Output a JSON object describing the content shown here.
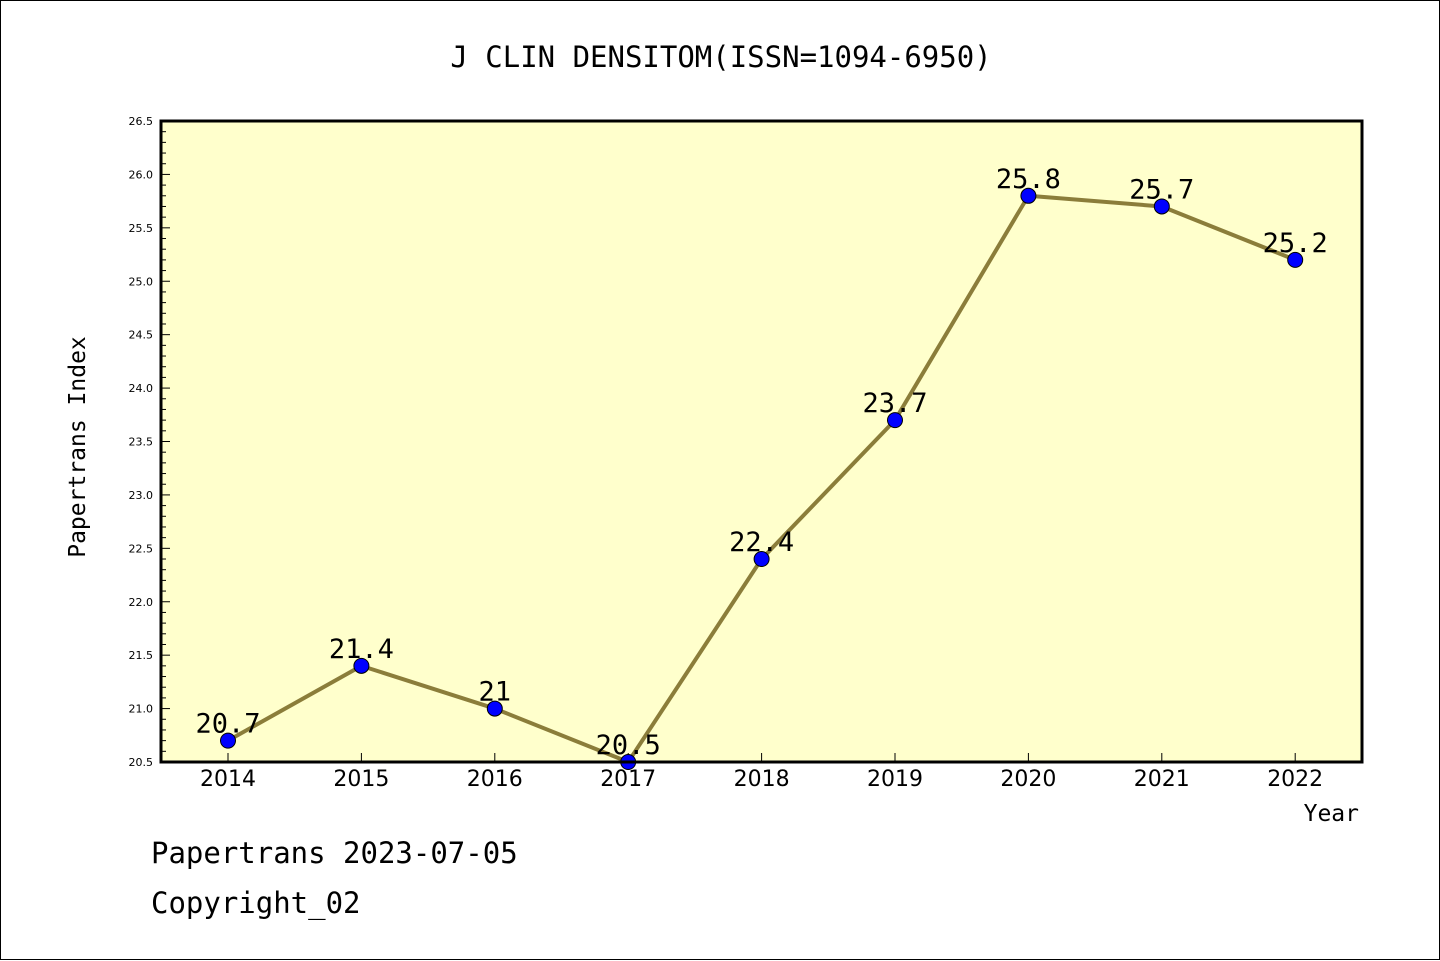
{
  "footer": {
    "line1": "Papertrans 2023-07-05",
    "line2": "Copyright_02"
  },
  "colors": {
    "plot_background": "#ffffcc",
    "line": "#8b7d3a",
    "marker": "#0000ff",
    "axis": "#000000"
  },
  "chart_data": {
    "type": "line",
    "title": "J CLIN DENSITOM(ISSN=1094-6950)",
    "xlabel": "Year",
    "ylabel": "Papertrans Index",
    "categories": [
      "2014",
      "2015",
      "2016",
      "2017",
      "2018",
      "2019",
      "2020",
      "2021",
      "2022"
    ],
    "series": [
      {
        "values": [
          20.7,
          21.4,
          21.0,
          20.5,
          22.4,
          23.7,
          25.8,
          25.7,
          25.2
        ],
        "data_labels": [
          "20.7",
          "21.4",
          "21",
          "20.5",
          "22.4",
          "23.7",
          "25.8",
          "25.7",
          "25.2"
        ]
      }
    ],
    "ylim": [
      20.5,
      26.5
    ],
    "yticks": [
      "20.5",
      "21.0",
      "21.5",
      "22.0",
      "22.5",
      "23.0",
      "23.5",
      "24.0",
      "24.5",
      "25.0",
      "25.5",
      "26.0",
      "26.5"
    ],
    "grid": false,
    "legend": "none"
  }
}
